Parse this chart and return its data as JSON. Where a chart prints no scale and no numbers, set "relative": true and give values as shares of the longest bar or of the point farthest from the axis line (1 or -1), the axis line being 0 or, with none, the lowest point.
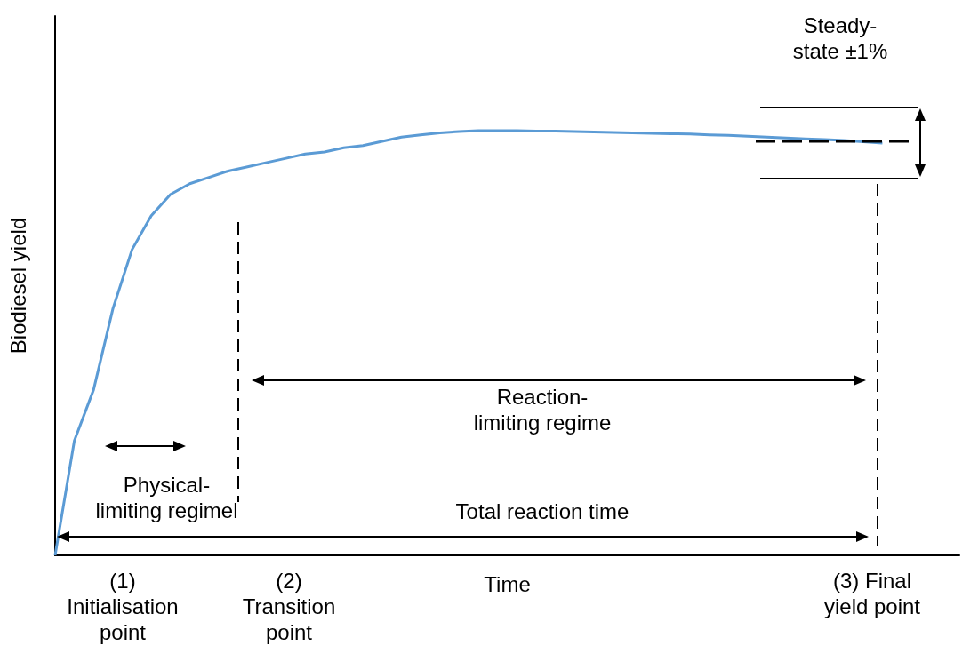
{
  "chart_data": {
    "type": "line",
    "xlabel": "Time",
    "ylabel": "Biodiesel yield",
    "relative": true,
    "marker": "none",
    "categories": [
      null,
      null,
      null,
      null,
      null,
      null,
      null,
      null,
      null,
      null,
      null,
      null,
      null,
      null,
      null,
      null,
      null,
      null,
      null,
      null,
      null,
      null,
      null,
      null,
      null,
      null,
      null,
      null,
      null,
      null,
      null,
      null,
      null,
      null,
      null,
      null,
      null,
      null,
      null,
      null,
      null,
      null,
      null,
      null,
      null,
      null,
      null,
      null
    ],
    "series": [
      {
        "color": "#5b9bd5",
        "values": [
          0,
          0.27,
          0.39,
          0.58,
          0.72,
          0.8,
          0.85,
          0.875,
          0.89,
          0.905,
          0.915,
          0.925,
          0.935,
          0.945,
          0.95,
          0.96,
          0.965,
          0.975,
          0.985,
          0.99,
          0.995,
          0.998,
          1,
          1,
          1,
          0.999,
          0.999,
          0.998,
          0.997,
          0.996,
          0.995,
          0.994,
          0.993,
          0.992,
          0.99,
          0.989,
          0.987,
          0.985,
          0.983,
          0.981,
          0.979,
          0.977,
          0.974,
          0.971,
          null,
          null,
          null,
          null
        ]
      }
    ],
    "annotations": [
      "Steady-state ±1%",
      "Reaction-limiting regime",
      "Physical-limiting regimel",
      "Total reaction time",
      "(1) Initialisation point",
      "(2) Transition point",
      "(3) Final yield point"
    ]
  }
}
